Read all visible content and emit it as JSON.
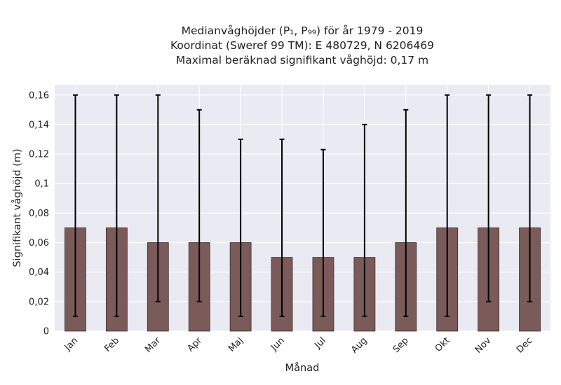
{
  "chart_data": {
    "type": "bar",
    "title_lines": [
      "Medianvåghöjder (P₁, P₉₉) för år 1979 - 2019",
      "Koordinat (Sweref 99 TM): E 480729, N 6206469",
      "Maximal beräknad signifikant våghöjd: 0,17 m"
    ],
    "xlabel": "Månad",
    "ylabel": "Signifikant våghöjd (m)",
    "categories": [
      "Jan",
      "Feb",
      "Mar",
      "Apr",
      "Maj",
      "Jun",
      "Jul",
      "Aug",
      "Sep",
      "Okt",
      "Nov",
      "Dec"
    ],
    "values": [
      0.07,
      0.07,
      0.06,
      0.06,
      0.06,
      0.05,
      0.05,
      0.05,
      0.06,
      0.07,
      0.07,
      0.07
    ],
    "error_low": [
      0.01,
      0.01,
      0.02,
      0.02,
      0.01,
      0.01,
      0.01,
      0.01,
      0.01,
      0.01,
      0.02,
      0.02
    ],
    "error_high": [
      0.16,
      0.16,
      0.16,
      0.15,
      0.13,
      0.13,
      0.123,
      0.14,
      0.15,
      0.16,
      0.16,
      0.16
    ],
    "ylim": [
      0,
      0.167
    ],
    "yticks": [
      0,
      0.02,
      0.04,
      0.06,
      0.08,
      0.1,
      0.12,
      0.14,
      0.16
    ],
    "ytick_labels": [
      "0",
      "0,02",
      "0,04",
      "0,06",
      "0,08",
      "0,1",
      "0,12",
      "0,14",
      "0,16"
    ],
    "grid": true,
    "colors": {
      "bar": "#7b5a5a",
      "bar_edge": "#3d2d2d",
      "error": "#000000",
      "plot_bg": "#eaeaf2",
      "grid": "#ffffff"
    }
  }
}
